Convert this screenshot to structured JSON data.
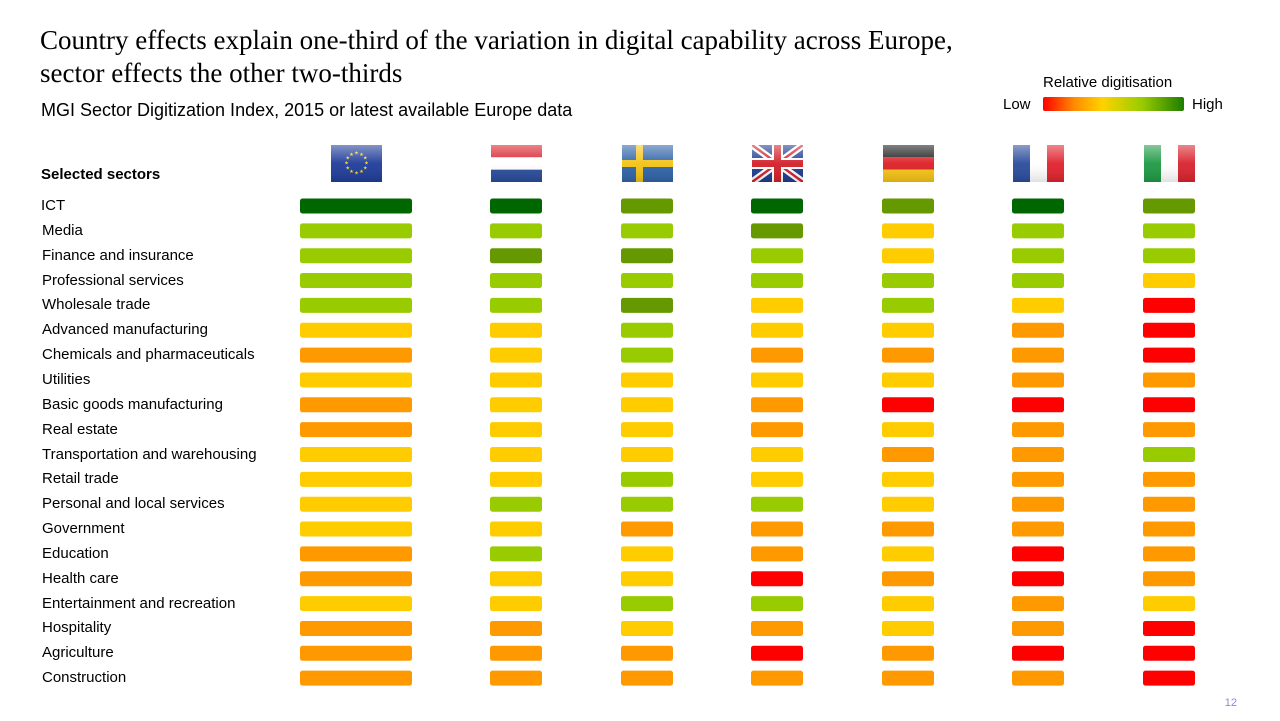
{
  "title_line1": "Country effects explain one-third of the variation in digital capability across Europe,",
  "title_line2": "sector effects the other two-thirds",
  "subtitle": "MGI Sector Digitization Index, 2015 or latest available Europe data",
  "legend": {
    "title": "Relative digitisation",
    "low": "Low",
    "high": "High",
    "gradient_colors": [
      "#ff0000",
      "#ff8a00",
      "#ffd200",
      "#99cc00",
      "#1e7d00"
    ]
  },
  "column_header": "Selected sectors",
  "page_number": "12",
  "colors": {
    "5": "#006600",
    "4": "#669900",
    "3": "#99cc00",
    "2": "#ffcc00",
    "1": "#ff9900",
    "0": "#ff0000"
  },
  "chart_data": {
    "type": "heatmap",
    "scale": "relative digitisation level, 0 = low (red) to 5 = high (dark green)",
    "columns": [
      "EU",
      "Netherlands",
      "Sweden",
      "United Kingdom",
      "Germany",
      "France",
      "Italy"
    ],
    "rows": [
      {
        "label": "ICT",
        "values": [
          5,
          5,
          4,
          5,
          4,
          5,
          4
        ]
      },
      {
        "label": "Media",
        "values": [
          3,
          3,
          3,
          4,
          2,
          3,
          3
        ]
      },
      {
        "label": "Finance and insurance",
        "values": [
          3,
          4,
          4,
          3,
          2,
          3,
          3
        ]
      },
      {
        "label": "Professional services",
        "values": [
          3,
          3,
          3,
          3,
          3,
          3,
          2
        ]
      },
      {
        "label": "Wholesale trade",
        "values": [
          3,
          3,
          4,
          2,
          3,
          2,
          0
        ]
      },
      {
        "label": "Advanced manufacturing",
        "values": [
          2,
          2,
          3,
          2,
          2,
          1,
          0
        ]
      },
      {
        "label": "Chemicals and pharmaceuticals",
        "values": [
          1,
          2,
          3,
          1,
          1,
          1,
          0
        ]
      },
      {
        "label": "Utilities",
        "values": [
          2,
          2,
          2,
          2,
          2,
          1,
          1
        ]
      },
      {
        "label": "Basic goods manufacturing",
        "values": [
          1,
          2,
          2,
          1,
          0,
          0,
          0
        ]
      },
      {
        "label": "Real estate",
        "values": [
          1,
          2,
          2,
          1,
          2,
          1,
          1
        ]
      },
      {
        "label": "Transportation and warehousing",
        "values": [
          2,
          2,
          2,
          2,
          1,
          1,
          3
        ]
      },
      {
        "label": "Retail trade",
        "values": [
          2,
          2,
          3,
          2,
          2,
          1,
          1
        ]
      },
      {
        "label": "Personal and local services",
        "values": [
          2,
          3,
          3,
          3,
          2,
          1,
          1
        ]
      },
      {
        "label": "Government",
        "values": [
          2,
          2,
          1,
          1,
          1,
          1,
          1
        ]
      },
      {
        "label": "Education",
        "values": [
          1,
          3,
          2,
          1,
          2,
          0,
          1
        ]
      },
      {
        "label": "Health care",
        "values": [
          1,
          2,
          2,
          0,
          1,
          0,
          1
        ]
      },
      {
        "label": "Entertainment and recreation",
        "values": [
          2,
          2,
          3,
          3,
          2,
          1,
          2
        ]
      },
      {
        "label": "Hospitality",
        "values": [
          1,
          1,
          2,
          1,
          2,
          1,
          0
        ]
      },
      {
        "label": "Agriculture",
        "values": [
          1,
          1,
          1,
          0,
          1,
          0,
          0
        ]
      },
      {
        "label": "Construction",
        "values": [
          1,
          1,
          1,
          1,
          1,
          1,
          0
        ]
      }
    ]
  }
}
